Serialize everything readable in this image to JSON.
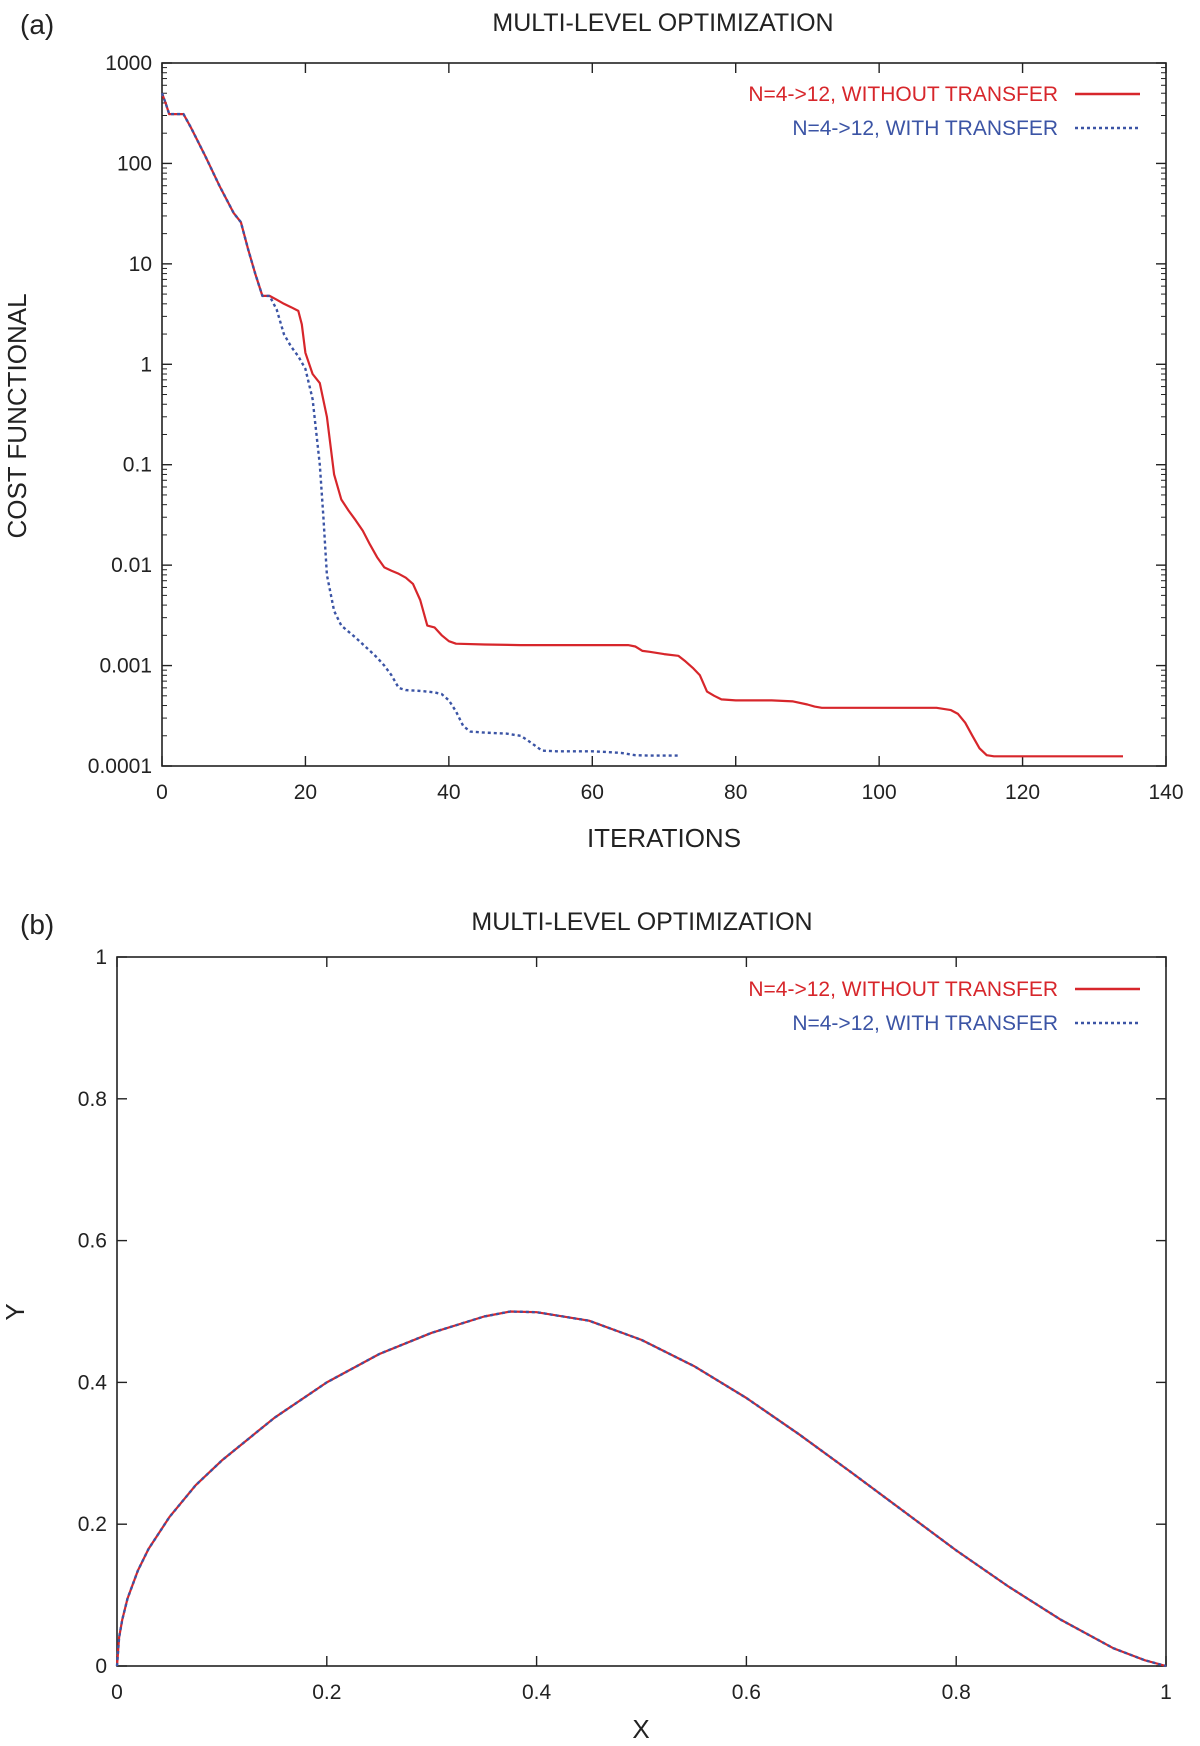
{
  "chart_data": [
    {
      "panel_label": "(a)",
      "type": "line",
      "title": "MULTI-LEVEL OPTIMIZATION",
      "xlabel": "ITERATIONS",
      "ylabel": "COST FUNCTIONAL",
      "xlim": [
        0,
        140
      ],
      "ylim": [
        0.0001,
        1000
      ],
      "yscale": "log",
      "grid": false,
      "legend_position": "top-right",
      "x_ticks": [
        0,
        20,
        40,
        60,
        80,
        100,
        120,
        140
      ],
      "x_tick_labels": [
        "0",
        "20",
        "40",
        "60",
        "80",
        "100",
        "120",
        "140"
      ],
      "y_ticks": [
        0.0001,
        0.001,
        0.01,
        0.1,
        1,
        10,
        100,
        1000
      ],
      "y_tick_labels": [
        "0.0001",
        "0.001",
        "0.01",
        "0.1",
        "1",
        "10",
        "100",
        "1000"
      ],
      "series": [
        {
          "name": "N=4->12, WITHOUT TRANSFER",
          "color": "#d7262b",
          "style": "solid",
          "x": [
            0,
            0.5,
            1,
            3,
            4,
            6,
            8,
            10,
            11,
            12,
            13,
            14,
            15,
            16,
            17,
            18,
            19,
            19.5,
            20,
            21,
            22,
            23,
            24,
            25,
            26,
            27,
            28,
            29,
            30,
            31,
            32,
            33,
            34,
            35,
            36,
            37,
            38,
            39,
            40,
            41,
            45,
            50,
            55,
            60,
            65,
            66,
            67,
            68,
            70,
            72,
            73,
            74,
            75,
            76,
            77,
            78,
            80,
            85,
            88,
            90,
            91,
            92,
            95,
            100,
            105,
            108,
            109,
            110,
            111,
            112,
            113,
            114,
            115,
            116,
            120,
            125,
            130,
            134
          ],
          "y": [
            500,
            400,
            310,
            310,
            230,
            120,
            60,
            32,
            26,
            14,
            8,
            4.8,
            4.8,
            4.4,
            4.0,
            3.7,
            3.4,
            2.5,
            1.3,
            0.8,
            0.65,
            0.3,
            0.08,
            0.045,
            0.035,
            0.028,
            0.022,
            0.016,
            0.012,
            0.0095,
            0.0088,
            0.0082,
            0.0075,
            0.0065,
            0.0045,
            0.0025,
            0.0024,
            0.002,
            0.00175,
            0.00165,
            0.00162,
            0.0016,
            0.0016,
            0.0016,
            0.0016,
            0.00155,
            0.0014,
            0.00137,
            0.0013,
            0.00125,
            0.0011,
            0.00095,
            0.0008,
            0.00055,
            0.0005,
            0.00046,
            0.00045,
            0.00045,
            0.00044,
            0.00041,
            0.00039,
            0.00038,
            0.00038,
            0.00038,
            0.00038,
            0.00038,
            0.00037,
            0.00036,
            0.00033,
            0.00027,
            0.0002,
            0.00015,
            0.000128,
            0.000125,
            0.000125,
            0.000125,
            0.000125,
            0.000125
          ]
        },
        {
          "name": "N=4->12, WITH TRANSFER",
          "color": "#3b54a5",
          "style": "dotted",
          "x": [
            0,
            0.5,
            1,
            3,
            4,
            6,
            8,
            10,
            11,
            12,
            13,
            14,
            15,
            16,
            17,
            18,
            19,
            20,
            21,
            22,
            22.5,
            23,
            24,
            25,
            27,
            29,
            30,
            31,
            32,
            33,
            34,
            36,
            38,
            39,
            40,
            41,
            42,
            43,
            45,
            48,
            50,
            51,
            52,
            53,
            55,
            60,
            62,
            64,
            66,
            68,
            70,
            72
          ],
          "y": [
            500,
            400,
            310,
            310,
            230,
            120,
            60,
            32,
            26,
            14,
            8,
            4.8,
            4.8,
            3.5,
            2.0,
            1.5,
            1.2,
            0.9,
            0.45,
            0.1,
            0.03,
            0.008,
            0.0035,
            0.0025,
            0.0019,
            0.0014,
            0.0012,
            0.001,
            0.0008,
            0.0006,
            0.00057,
            0.00056,
            0.00054,
            0.00052,
            0.00045,
            0.00035,
            0.00025,
            0.00022,
            0.000215,
            0.00021,
            0.0002,
            0.00018,
            0.00016,
            0.000142,
            0.00014,
            0.00014,
            0.000138,
            0.000135,
            0.000128,
            0.000127,
            0.000127,
            0.000127
          ]
        }
      ]
    },
    {
      "panel_label": "(b)",
      "type": "line",
      "title": "MULTI-LEVEL OPTIMIZATION",
      "xlabel": "X",
      "ylabel": "Y",
      "xlim": [
        0,
        1
      ],
      "ylim": [
        0,
        1
      ],
      "grid": false,
      "legend_position": "top-right",
      "x_ticks": [
        0,
        0.2,
        0.4,
        0.6,
        0.8,
        1
      ],
      "x_tick_labels": [
        "0",
        "0.2",
        "0.4",
        "0.6",
        "0.8",
        "1"
      ],
      "y_ticks": [
        0,
        0.2,
        0.4,
        0.6,
        0.8,
        1
      ],
      "y_tick_labels": [
        "0",
        "0.2",
        "0.4",
        "0.6",
        "0.8",
        "1"
      ],
      "series": [
        {
          "name": "N=4->12, WITHOUT TRANSFER",
          "color": "#d7262b",
          "style": "solid",
          "x": [
            0,
            0.002,
            0.005,
            0.01,
            0.02,
            0.03,
            0.05,
            0.075,
            0.1,
            0.15,
            0.2,
            0.25,
            0.3,
            0.35,
            0.375,
            0.4,
            0.45,
            0.5,
            0.55,
            0.6,
            0.65,
            0.7,
            0.75,
            0.8,
            0.85,
            0.9,
            0.95,
            0.98,
            1.0
          ],
          "y": [
            0,
            0.04,
            0.065,
            0.095,
            0.135,
            0.165,
            0.21,
            0.255,
            0.29,
            0.35,
            0.4,
            0.44,
            0.47,
            0.493,
            0.5,
            0.499,
            0.487,
            0.46,
            0.423,
            0.378,
            0.327,
            0.273,
            0.218,
            0.163,
            0.112,
            0.065,
            0.025,
            0.008,
            0
          ]
        },
        {
          "name": "N=4->12, WITH TRANSFER",
          "color": "#3b54a5",
          "style": "dotted",
          "x": [
            0,
            0.002,
            0.005,
            0.01,
            0.02,
            0.03,
            0.05,
            0.075,
            0.1,
            0.15,
            0.2,
            0.25,
            0.3,
            0.35,
            0.375,
            0.4,
            0.45,
            0.5,
            0.55,
            0.6,
            0.65,
            0.7,
            0.75,
            0.8,
            0.85,
            0.9,
            0.95,
            0.98,
            1.0
          ],
          "y": [
            0,
            0.04,
            0.065,
            0.095,
            0.135,
            0.165,
            0.21,
            0.255,
            0.29,
            0.35,
            0.4,
            0.44,
            0.47,
            0.493,
            0.5,
            0.499,
            0.487,
            0.46,
            0.423,
            0.378,
            0.327,
            0.273,
            0.218,
            0.163,
            0.112,
            0.065,
            0.025,
            0.008,
            0
          ]
        }
      ]
    }
  ]
}
